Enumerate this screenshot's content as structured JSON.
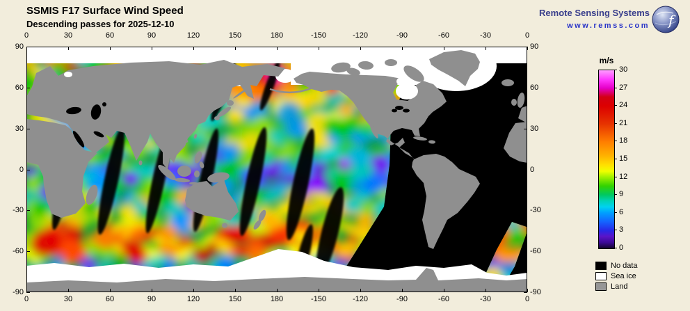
{
  "header": {
    "title": "SSMIS F17 Surface Wind Speed",
    "subtitle": "Descending passes for 2025-12-10"
  },
  "branding": {
    "org": "Remote Sensing Systems",
    "url": "www.remss.com",
    "logo_icon": "globe-icon"
  },
  "axes": {
    "lon": [
      "0",
      "30",
      "60",
      "90",
      "120",
      "150",
      "180",
      "-150",
      "-120",
      "-90",
      "-60",
      "-30",
      "0"
    ],
    "lat": [
      "90",
      "60",
      "30",
      "0",
      "-30",
      "-60",
      "-90"
    ]
  },
  "colorbar": {
    "unit": "m/s",
    "ticks": [
      "30",
      "27",
      "24",
      "21",
      "18",
      "15",
      "12",
      "9",
      "6",
      "3",
      "0"
    ],
    "min": 0,
    "max": 30,
    "stops": [
      {
        "v": 30,
        "color": "#ff9cff"
      },
      {
        "v": 28.5,
        "color": "#ff3cff"
      },
      {
        "v": 27,
        "color": "#e600c8"
      },
      {
        "v": 25.5,
        "color": "#d20014"
      },
      {
        "v": 24,
        "color": "#dc0000"
      },
      {
        "v": 21,
        "color": "#e63200"
      },
      {
        "v": 18,
        "color": "#ff7d00"
      },
      {
        "v": 15.5,
        "color": "#ffb400"
      },
      {
        "v": 14,
        "color": "#ffe100"
      },
      {
        "v": 13,
        "color": "#f0ff00"
      },
      {
        "v": 12,
        "color": "#a0f000"
      },
      {
        "v": 10.5,
        "color": "#32d200"
      },
      {
        "v": 9,
        "color": "#00c864"
      },
      {
        "v": 8,
        "color": "#00d2b4"
      },
      {
        "v": 7,
        "color": "#00d2f0"
      },
      {
        "v": 6,
        "color": "#00a0ff"
      },
      {
        "v": 4.5,
        "color": "#1464ff"
      },
      {
        "v": 3,
        "color": "#2828e6"
      },
      {
        "v": 2,
        "color": "#5a14c8"
      },
      {
        "v": 1,
        "color": "#3c0a96"
      },
      {
        "v": 0,
        "color": "#14052d"
      }
    ]
  },
  "legend": {
    "items": [
      {
        "label": "No data",
        "color": "#000000"
      },
      {
        "label": "Sea ice",
        "color": "#ffffff"
      },
      {
        "label": "Land",
        "color": "#969696"
      }
    ]
  },
  "colors": {
    "background": "#f2eddc",
    "land": "#8f8f8f",
    "no_data": "#000000",
    "sea_ice": "#ffffff"
  }
}
